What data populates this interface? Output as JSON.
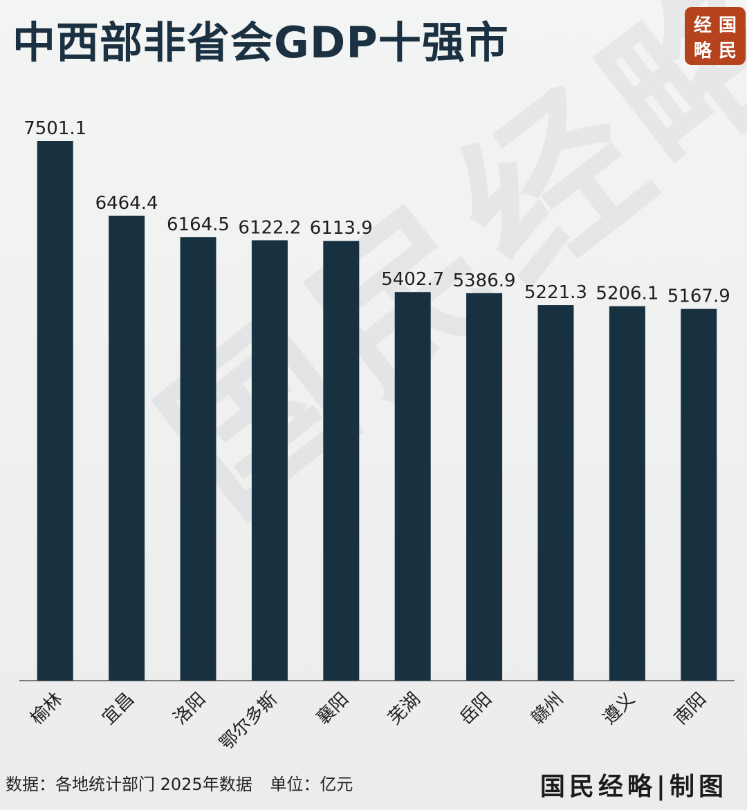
{
  "logo": {
    "chars": [
      "经",
      "国",
      "略",
      "民"
    ],
    "color": "#b4431e"
  },
  "watermark": "国民经略",
  "colors": {
    "bar": "#173141",
    "axis": "#555555",
    "label": "#1e1e1e"
  },
  "chart_data": {
    "type": "bar",
    "title": "中西部非省会GDP十强市",
    "categories": [
      "榆林",
      "宜昌",
      "洛阳",
      "鄂尔多斯",
      "襄阳",
      "芜湖",
      "岳阳",
      "赣州",
      "遵义",
      "南阳"
    ],
    "values": [
      7501.1,
      6464.4,
      6164.5,
      6122.2,
      6113.9,
      5402.7,
      5386.9,
      5221.3,
      5206.1,
      5167.9
    ],
    "value_labels": [
      "7501.1",
      "6464.4",
      "6164.5",
      "6122.2",
      "6113.9",
      "5402.7",
      "5386.9",
      "5221.3",
      "5206.1",
      "5167.9"
    ],
    "ylim": [
      0,
      7501.1
    ],
    "grid": false,
    "legend": "none"
  },
  "footer": {
    "source": "数据：各地统计部门 2025年数据",
    "unit": "单位：亿元",
    "credit": "国民经略|制图"
  }
}
